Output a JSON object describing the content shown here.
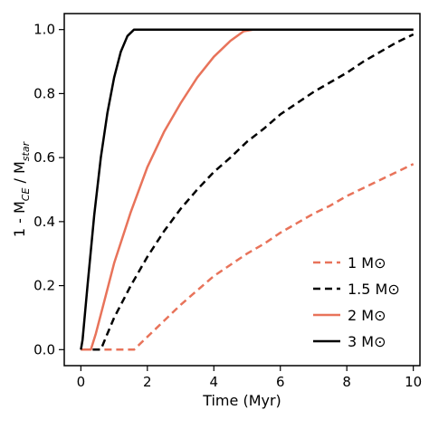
{
  "chart_data": {
    "type": "line",
    "xlabel": "Time (Myr)",
    "ylabel": "1 - M_CE / M_star",
    "ylabel_parts": {
      "prefix": "1 - M",
      "sub1": "CE",
      "middle": " / M",
      "sub2": "star"
    },
    "xlim": [
      -0.5,
      10.2
    ],
    "ylim": [
      -0.05,
      1.05
    ],
    "xticks": [
      0,
      2,
      4,
      6,
      8,
      10
    ],
    "yticks": [
      0.0,
      0.2,
      0.4,
      0.6,
      0.8,
      1.0
    ],
    "xtick_labels": [
      "0",
      "2",
      "4",
      "6",
      "8",
      "10"
    ],
    "ytick_labels": [
      "0.0",
      "0.2",
      "0.4",
      "0.6",
      "0.8",
      "1.0"
    ],
    "grid": false,
    "legend_position": "lower-right",
    "series": [
      {
        "name": "1 M⊙",
        "color": "#e8735a",
        "dash": "dashed",
        "points": [
          [
            0.0,
            0.0
          ],
          [
            1.6,
            0.0
          ],
          [
            2.0,
            0.04
          ],
          [
            2.5,
            0.09
          ],
          [
            3.0,
            0.14
          ],
          [
            3.5,
            0.185
          ],
          [
            4.0,
            0.23
          ],
          [
            4.5,
            0.265
          ],
          [
            5.0,
            0.3
          ],
          [
            5.5,
            0.33
          ],
          [
            6.0,
            0.365
          ],
          [
            6.5,
            0.395
          ],
          [
            7.0,
            0.425
          ],
          [
            7.5,
            0.45
          ],
          [
            8.0,
            0.48
          ],
          [
            8.5,
            0.505
          ],
          [
            9.0,
            0.53
          ],
          [
            9.5,
            0.555
          ],
          [
            10.0,
            0.58
          ]
        ]
      },
      {
        "name": "1.5 M⊙",
        "color": "#000000",
        "dash": "dashed",
        "points": [
          [
            0.0,
            0.0
          ],
          [
            0.6,
            0.0
          ],
          [
            0.8,
            0.05
          ],
          [
            1.0,
            0.1
          ],
          [
            1.5,
            0.2
          ],
          [
            2.0,
            0.29
          ],
          [
            2.5,
            0.37
          ],
          [
            3.0,
            0.44
          ],
          [
            3.5,
            0.5
          ],
          [
            4.0,
            0.555
          ],
          [
            4.5,
            0.6
          ],
          [
            5.0,
            0.65
          ],
          [
            5.5,
            0.69
          ],
          [
            6.0,
            0.735
          ],
          [
            6.5,
            0.77
          ],
          [
            7.0,
            0.805
          ],
          [
            7.5,
            0.835
          ],
          [
            8.0,
            0.865
          ],
          [
            8.5,
            0.9
          ],
          [
            9.0,
            0.93
          ],
          [
            9.5,
            0.96
          ],
          [
            10.0,
            0.985
          ]
        ]
      },
      {
        "name": "2 M⊙",
        "color": "#e8735a",
        "dash": "solid",
        "points": [
          [
            0.0,
            0.0
          ],
          [
            0.3,
            0.0
          ],
          [
            0.45,
            0.05
          ],
          [
            0.7,
            0.15
          ],
          [
            1.0,
            0.27
          ],
          [
            1.5,
            0.43
          ],
          [
            2.0,
            0.57
          ],
          [
            2.5,
            0.68
          ],
          [
            3.0,
            0.77
          ],
          [
            3.5,
            0.85
          ],
          [
            4.0,
            0.915
          ],
          [
            4.5,
            0.965
          ],
          [
            4.9,
            0.995
          ],
          [
            5.2,
            1.0
          ],
          [
            10.0,
            1.0
          ]
        ]
      },
      {
        "name": "3 M⊙",
        "color": "#000000",
        "dash": "solid",
        "points": [
          [
            0.0,
            0.0
          ],
          [
            0.05,
            0.03
          ],
          [
            0.2,
            0.2
          ],
          [
            0.4,
            0.42
          ],
          [
            0.6,
            0.6
          ],
          [
            0.8,
            0.74
          ],
          [
            1.0,
            0.85
          ],
          [
            1.2,
            0.93
          ],
          [
            1.4,
            0.98
          ],
          [
            1.6,
            1.0
          ],
          [
            10.0,
            1.0
          ]
        ]
      }
    ]
  }
}
